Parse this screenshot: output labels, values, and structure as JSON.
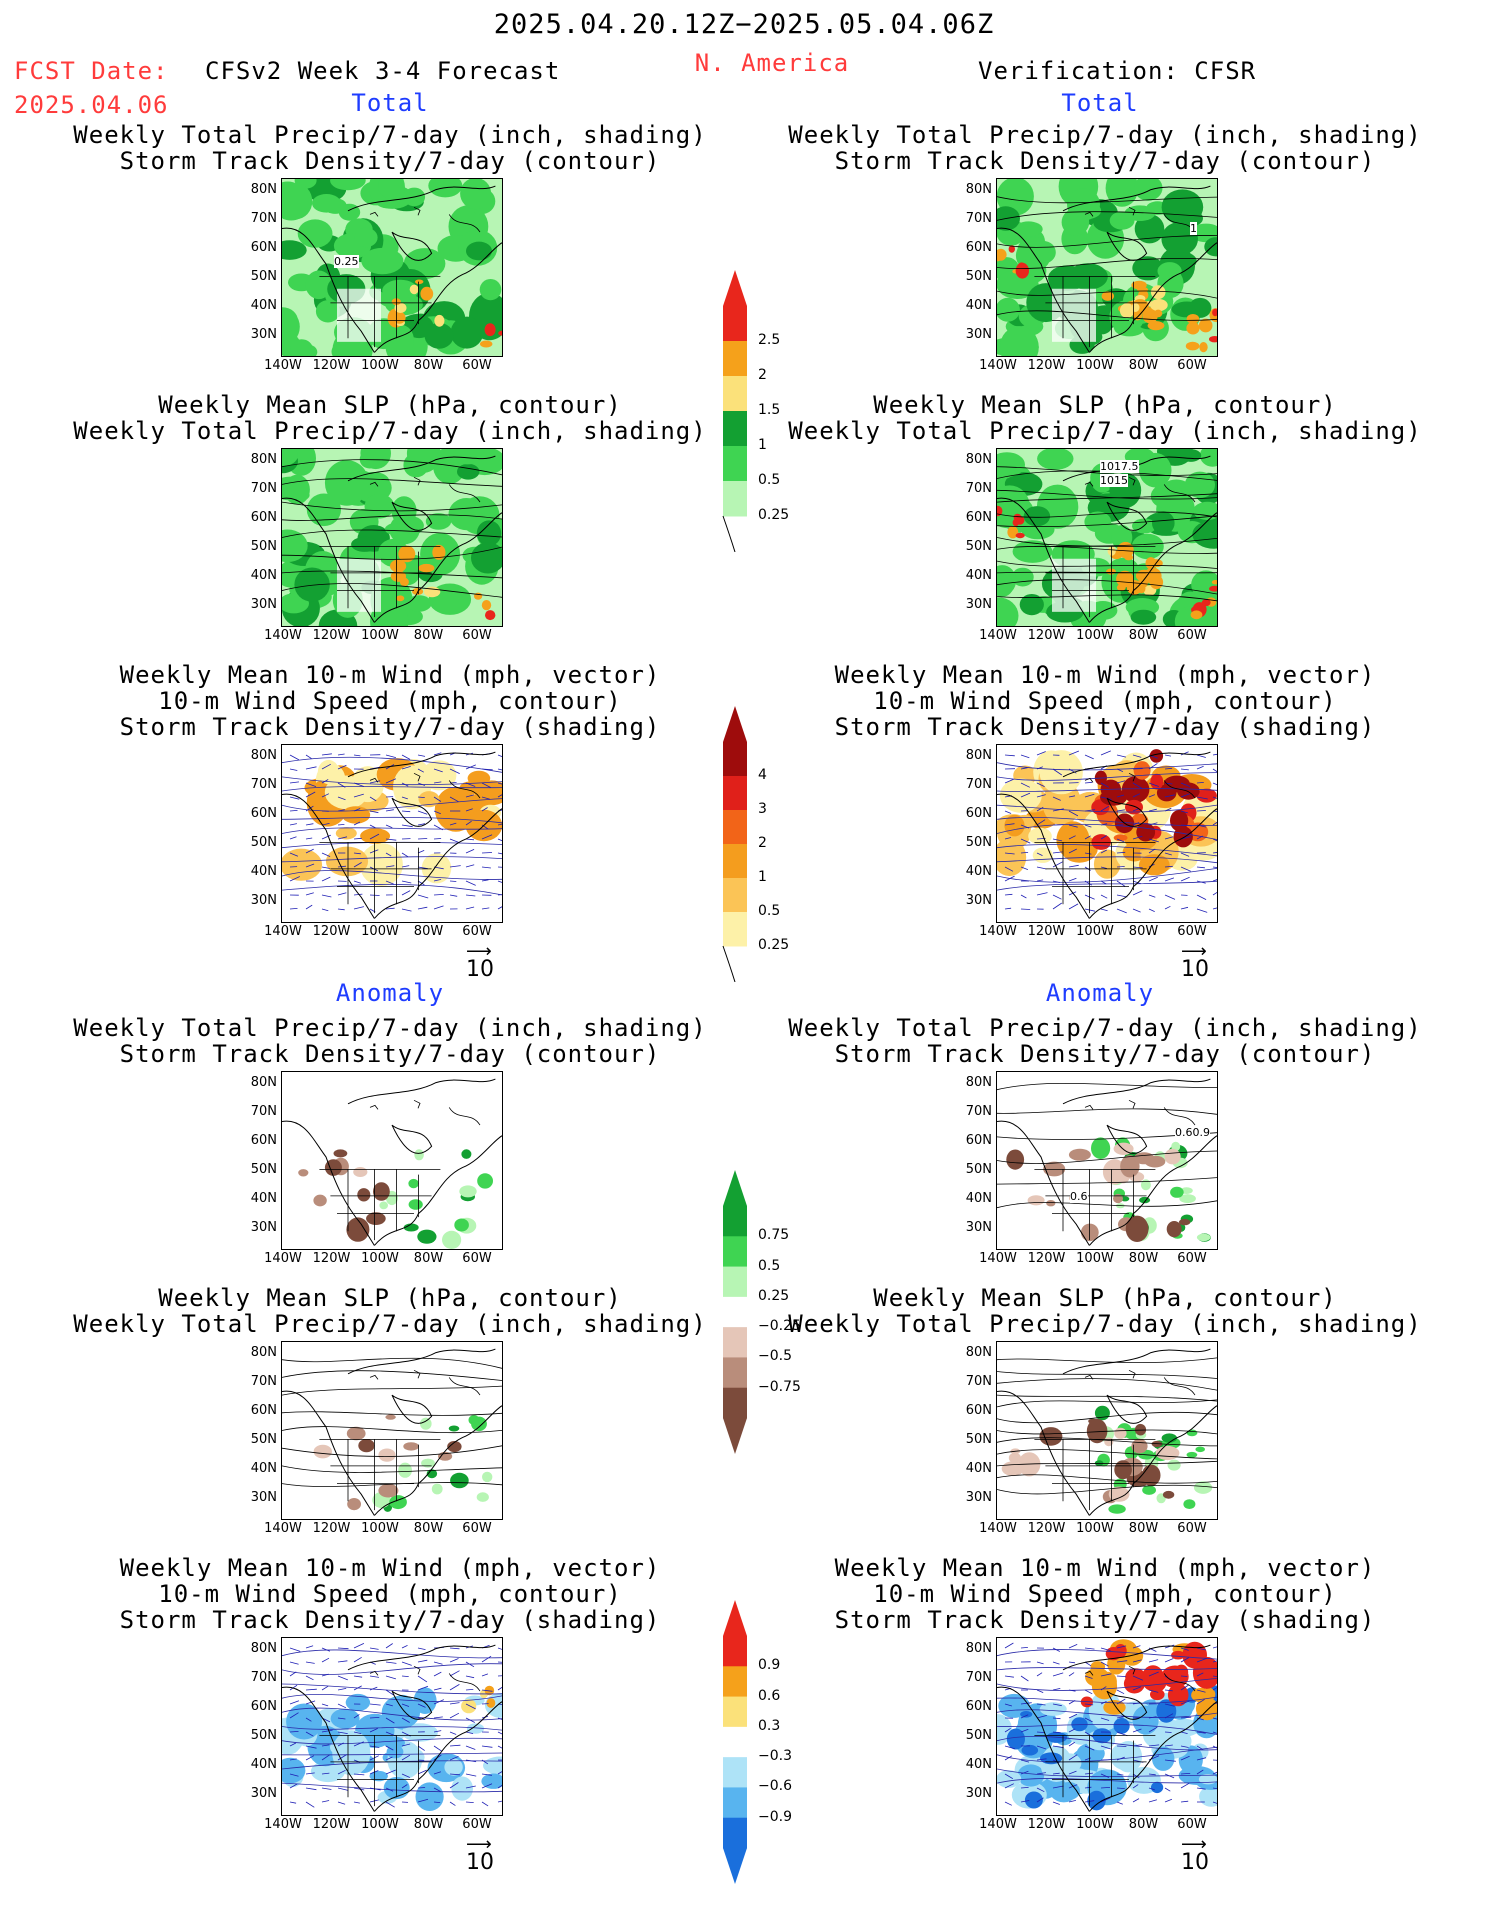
{
  "header": {
    "date_range": "2025.04.20.12Z−2025.05.04.06Z",
    "fcst_label": "FCST Date:",
    "fcst_date": "2025.04.06",
    "product": "CFSv2 Week 3-4 Forecast",
    "region": "N. America",
    "verification": "Verification: CFSR"
  },
  "sections": {
    "total": "Total",
    "anomaly": "Anomaly"
  },
  "titles": {
    "precip_storm": [
      "Weekly Total Precip/7-day (inch, shading)",
      "Storm Track Density/7-day (contour)"
    ],
    "slp_precip": [
      "Weekly Mean SLP (hPa, contour)",
      "Weekly Total Precip/7-day (inch, shading)"
    ],
    "wind_storm": [
      "Weekly Mean 10-m Wind (mph, vector)",
      "10-m Wind Speed (mph, contour)",
      "Storm Track Density/7-day (shading)"
    ]
  },
  "axes": {
    "lat": [
      "80N",
      "70N",
      "60N",
      "50N",
      "40N",
      "30N"
    ],
    "lon": [
      "140W",
      "120W",
      "100W",
      "80W",
      "60W"
    ]
  },
  "vector_scale": "10",
  "map_annotations": {
    "fc_precip_total": "0.25",
    "vf_precip_total": "1",
    "vf_slp_a": "1017.5",
    "vf_slp_b": "1015",
    "vf_precip_anom": "0.60.9",
    "vf_precip_anom_b": "0.6"
  },
  "colorbars": {
    "precip_total": {
      "labels": [
        "2.5",
        "2",
        "1.5",
        "1",
        "0.5",
        "0.25"
      ],
      "colors": [
        "#e8261c",
        "#f5a11b",
        "#fbe17a",
        "#13a032",
        "#3fd452",
        "#b7f5b4"
      ]
    },
    "storm_total": {
      "labels": [
        "4",
        "3",
        "2",
        "1",
        "0.5",
        "0.25"
      ],
      "colors": [
        "#9e0c0c",
        "#e0201a",
        "#f26418",
        "#f49d1e",
        "#fbc456",
        "#fdf1a8"
      ]
    },
    "precip_anom": {
      "labels": [
        "0.75",
        "0.5",
        "0.25",
        "−0.25",
        "−0.5",
        "−0.75"
      ],
      "colors": [
        "#13a032",
        "#3fd452",
        "#b7f5b4",
        "#ffffff",
        "#e5c6b8",
        "#b98d7b",
        "#7c4b3b"
      ]
    },
    "storm_anom": {
      "labels": [
        "0.9",
        "0.6",
        "0.3",
        "−0.3",
        "−0.6",
        "−0.9"
      ],
      "colors": [
        "#e8261c",
        "#f5a11b",
        "#fbe17a",
        "#ffffff",
        "#aee3f7",
        "#58b4ef",
        "#1a6fdc"
      ]
    }
  }
}
